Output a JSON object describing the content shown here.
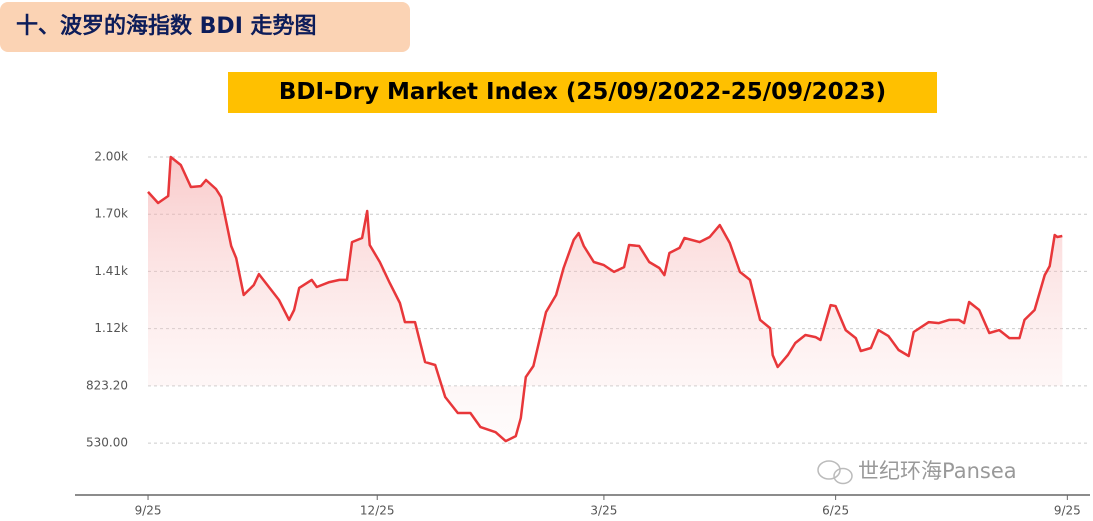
{
  "header": {
    "title": "十、波罗的海指数 BDI 走势图"
  },
  "watermark": "世纪环海Pansea",
  "chart_data": {
    "type": "line",
    "title": "BDI-Dry Market Index (25/09/2022-25/09/2023)",
    "color": "#e8373a",
    "grid": true,
    "xlim": [
      -29,
      374
    ],
    "ylim": [
      264,
      2083
    ],
    "xticks": [
      {
        "value": 0,
        "label": "9/25"
      },
      {
        "value": 91,
        "label": "12/25"
      },
      {
        "value": 181,
        "label": "3/25"
      },
      {
        "value": 273,
        "label": "6/25"
      },
      {
        "value": 365,
        "label": "9/25"
      }
    ],
    "yticks": [
      {
        "value": 530,
        "label": "530.00"
      },
      {
        "value": 823.2,
        "label": "823.20"
      },
      {
        "value": 1116.4,
        "label": "1.12k"
      },
      {
        "value": 1409.6,
        "label": "1.41k"
      },
      {
        "value": 1702.8,
        "label": "1.70k"
      },
      {
        "value": 1996,
        "label": "2.00k"
      }
    ],
    "x": [
      0,
      4,
      8,
      9,
      13,
      17,
      21,
      23,
      27,
      29,
      33,
      35,
      38,
      42,
      44,
      48,
      52,
      56,
      58,
      60,
      65,
      67,
      72,
      76,
      79,
      81,
      85,
      87,
      88,
      92,
      96,
      100,
      102,
      106,
      110,
      114,
      118,
      123,
      128,
      132,
      138,
      142,
      146,
      148,
      150,
      153,
      158,
      162,
      165,
      169,
      171,
      173,
      177,
      181,
      185,
      189,
      191,
      195,
      199,
      203,
      205,
      207,
      211,
      213,
      219,
      223,
      227,
      231,
      235,
      239,
      243,
      247,
      248,
      250,
      254,
      257,
      261,
      265,
      267,
      271,
      273,
      277,
      281,
      283,
      287,
      290,
      294,
      298,
      302,
      304,
      310,
      314,
      318,
      322,
      324,
      326,
      330,
      334,
      338,
      342,
      346,
      348,
      352,
      356,
      358,
      360,
      361,
      363
    ],
    "values": [
      1817,
      1760,
      1796,
      1996,
      1955,
      1842,
      1847,
      1878,
      1832,
      1791,
      1540,
      1478,
      1289,
      1340,
      1396,
      1330,
      1263,
      1161,
      1212,
      1325,
      1366,
      1330,
      1355,
      1366,
      1366,
      1560,
      1581,
      1719,
      1545,
      1458,
      1350,
      1248,
      1150,
      1150,
      945,
      930,
      766,
      684,
      684,
      612,
      586,
      540,
      566,
      658,
      868,
      925,
      1201,
      1289,
      1427,
      1571,
      1606,
      1540,
      1458,
      1442,
      1407,
      1432,
      1545,
      1540,
      1458,
      1427,
      1391,
      1504,
      1530,
      1581,
      1560,
      1586,
      1647,
      1555,
      1407,
      1366,
      1161,
      1119,
      981,
      920,
      981,
      1043,
      1084,
      1073,
      1058,
      1237,
      1232,
      1109,
      1068,
      1002,
      1017,
      1109,
      1078,
      1007,
      976,
      1099,
      1150,
      1145,
      1161,
      1161,
      1145,
      1253,
      1212,
      1094,
      1109,
      1068,
      1068,
      1161,
      1212,
      1391,
      1437,
      1596,
      1586,
      1591
    ]
  }
}
